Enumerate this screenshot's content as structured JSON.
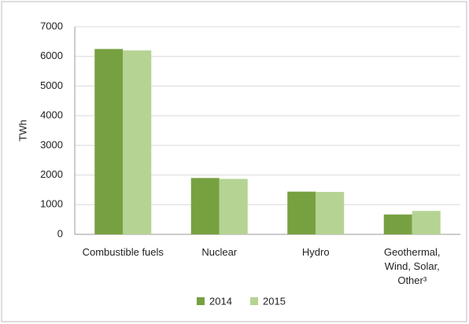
{
  "chart_data": {
    "type": "bar",
    "y_label": "TWh",
    "categories": [
      "Combustible fuels",
      "Nuclear",
      "Hydro",
      "Geothermal, Wind, Solar, Other³"
    ],
    "series": [
      {
        "name": "2014",
        "color": "#77a141",
        "values": [
          6250,
          1900,
          1440,
          670
        ]
      },
      {
        "name": "2015",
        "color": "#b5d393",
        "values": [
          6200,
          1870,
          1430,
          790
        ]
      }
    ],
    "ylim": [
      0,
      7000
    ],
    "yticks": [
      0,
      1000,
      2000,
      3000,
      4000,
      5000,
      6000,
      7000
    ],
    "grid": true,
    "legend": "bottom"
  }
}
